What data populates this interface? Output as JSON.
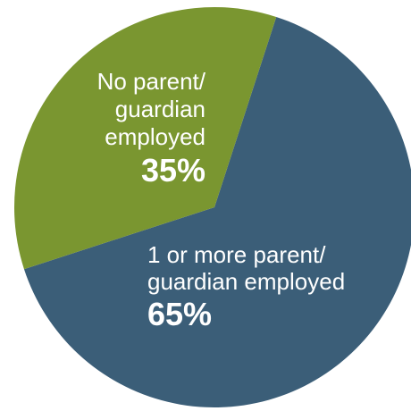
{
  "chart_data": {
    "type": "pie",
    "slices": [
      {
        "label_lines": [
          "1 or more parent/",
          "guardian employed"
        ],
        "value": 65,
        "value_text": "65%",
        "color": "#3b5e78"
      },
      {
        "label_lines": [
          "No parent/",
          "guardian",
          "employed"
        ],
        "value": 35,
        "value_text": "35%",
        "color": "#7a9630"
      }
    ]
  }
}
